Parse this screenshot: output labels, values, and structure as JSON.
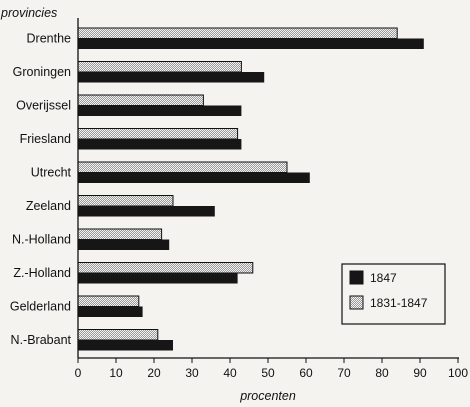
{
  "chart_data": {
    "type": "bar",
    "orientation": "horizontal",
    "ylabel": "provincies",
    "xlabel": "procenten",
    "xlim": [
      0,
      100
    ],
    "xticks": [
      0,
      10,
      20,
      30,
      40,
      50,
      60,
      70,
      80,
      90,
      100
    ],
    "categories": [
      "Drenthe",
      "Groningen",
      "Overijssel",
      "Friesland",
      "Utrecht",
      "Zeeland",
      "N.-Holland",
      "Z.-Holland",
      "Gelderland",
      "N.-Brabant"
    ],
    "series": [
      {
        "name": "1831-1847",
        "pattern": "dotted",
        "values": [
          84,
          43,
          33,
          42,
          55,
          25,
          22,
          46,
          16,
          21
        ]
      },
      {
        "name": "1847",
        "pattern": "solid",
        "values": [
          91,
          49,
          43,
          43,
          61,
          36,
          24,
          42,
          17,
          25
        ]
      }
    ],
    "legend": {
      "position": "bottom-right",
      "items": [
        "1847",
        "1831-1847"
      ]
    },
    "grid": false,
    "colors": {
      "solid": "#161616",
      "dotted_bg": "#9a9a9a",
      "dotted_fg": "#f2f2f2",
      "axis": "#111111"
    }
  }
}
